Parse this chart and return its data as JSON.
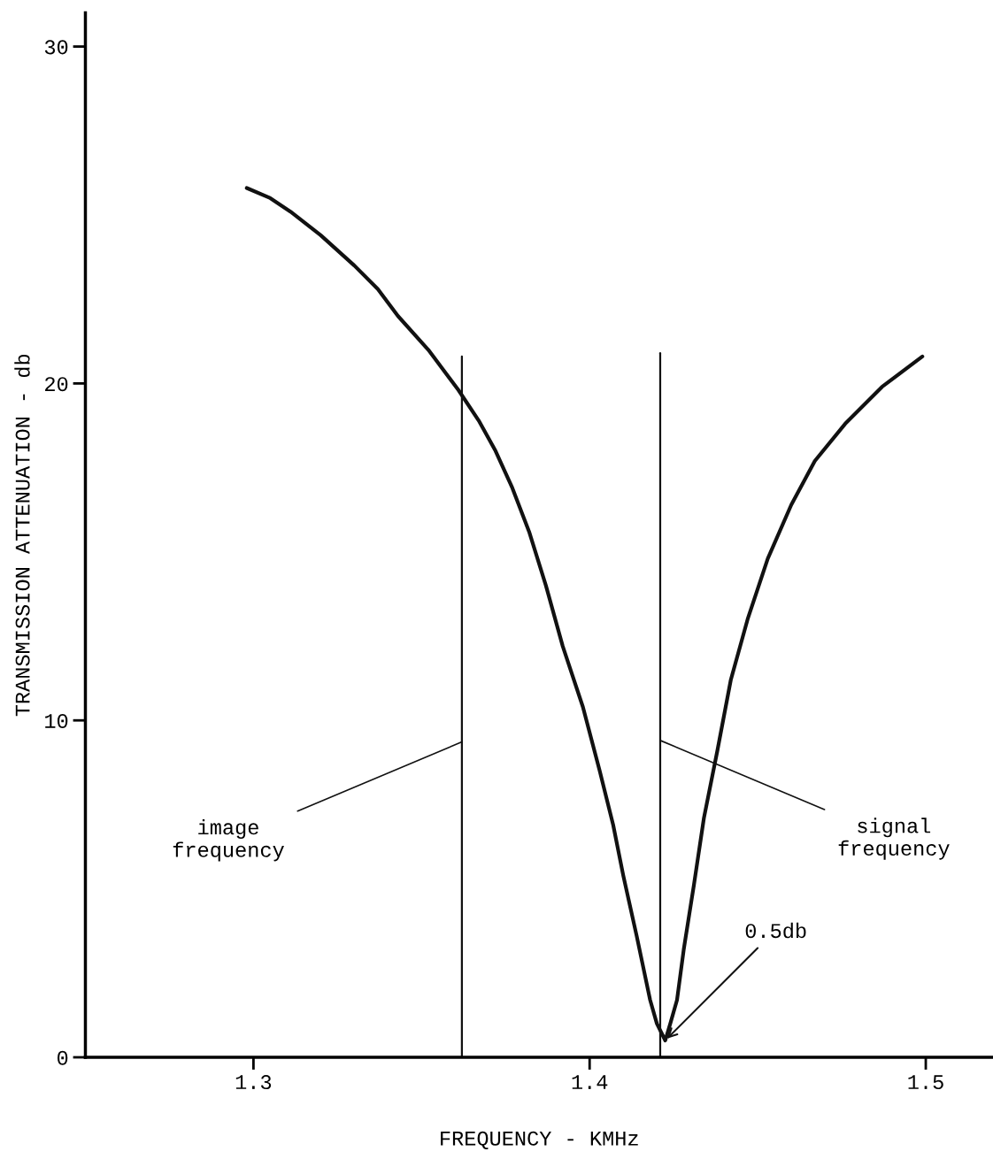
{
  "chart_data": {
    "type": "line",
    "xlabel": "FREQUENCY - KMHz",
    "ylabel": "TRANSMISSION ATTENUATION - db",
    "xlim": [
      1.25,
      1.52
    ],
    "ylim": [
      0,
      31
    ],
    "xticks": [
      1.3,
      1.4,
      1.5
    ],
    "yticks": [
      0,
      10,
      20,
      30
    ],
    "grid": false,
    "legend": false,
    "marker": "none",
    "line_style": "solid",
    "series": [
      {
        "color": "#111111",
        "x": [
          1.298,
          1.305,
          1.311,
          1.32,
          1.33,
          1.337,
          1.343,
          1.352,
          1.361,
          1.367,
          1.372,
          1.377,
          1.382,
          1.387,
          1.392,
          1.398,
          1.403,
          1.407,
          1.41,
          1.414,
          1.418,
          1.42,
          1.4225,
          1.424,
          1.426,
          1.428,
          1.431,
          1.434,
          1.438,
          1.442,
          1.447,
          1.453,
          1.46,
          1.467,
          1.476,
          1.487,
          1.499
        ],
        "values": [
          25.8,
          25.5,
          25.1,
          24.4,
          23.5,
          22.8,
          22.0,
          21.0,
          19.8,
          18.9,
          18.0,
          16.9,
          15.6,
          14.0,
          12.2,
          10.4,
          8.5,
          6.9,
          5.4,
          3.6,
          1.7,
          1.0,
          0.5,
          1.0,
          1.7,
          3.2,
          5.1,
          7.1,
          9.1,
          11.2,
          13.0,
          14.8,
          16.4,
          17.7,
          18.8,
          19.9,
          20.8
        ]
      },
      {
        "name": "image\nfrequency",
        "color": "#111111",
        "x": [
          1.362,
          1.362
        ],
        "values": [
          0,
          20.8
        ]
      },
      {
        "name": "signal\nfrequency",
        "color": "#111111",
        "x": [
          1.421,
          1.421
        ],
        "values": [
          0,
          20.9
        ]
      }
    ],
    "annotations": [
      {
        "text": "0.5db",
        "x": 1.4225,
        "y": 0.5
      }
    ]
  }
}
